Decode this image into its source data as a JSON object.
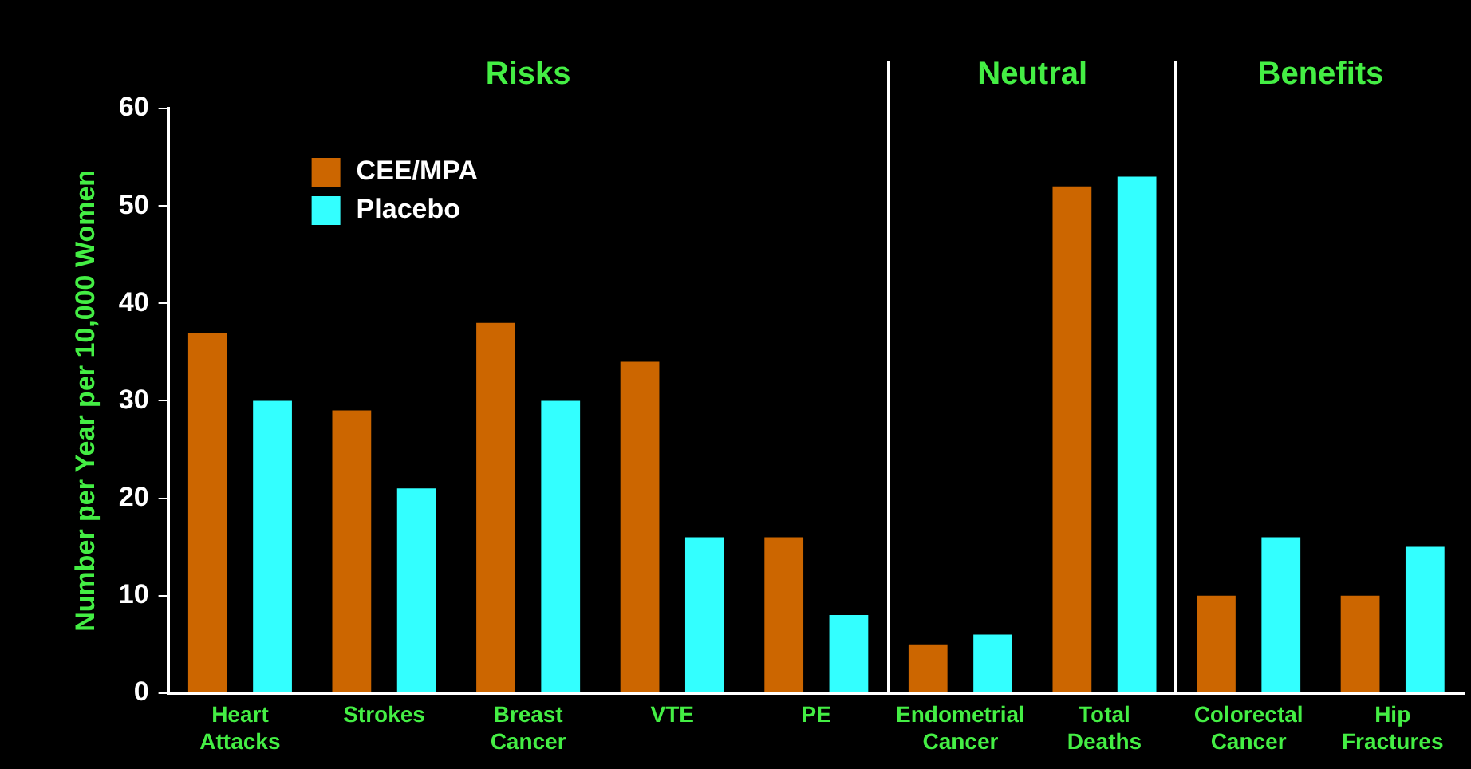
{
  "chart_data": {
    "type": "bar",
    "ylabel": "Number per Year per 10,000 Women",
    "categories": [
      "Heart Attacks",
      "Strokes",
      "Breast Cancer",
      "VTE",
      "PE",
      "Endometrial Cancer",
      "Total Deaths",
      "Colorectal Cancer",
      "Hip Fractures"
    ],
    "series": [
      {
        "name": "CEE/MPA",
        "color": "#cc6600",
        "values": [
          37,
          29,
          38,
          34,
          16,
          5,
          52,
          10,
          10
        ]
      },
      {
        "name": "Placebo",
        "color": "#33ffff",
        "values": [
          30,
          21,
          30,
          16,
          8,
          6,
          53,
          16,
          15
        ]
      }
    ],
    "ylim": [
      0,
      60
    ],
    "yticks": [
      0,
      10,
      20,
      30,
      40,
      50,
      60
    ],
    "grid": false,
    "legend": "top left",
    "annotations": [
      "Risks",
      "Neutral",
      "Benefits"
    ]
  }
}
